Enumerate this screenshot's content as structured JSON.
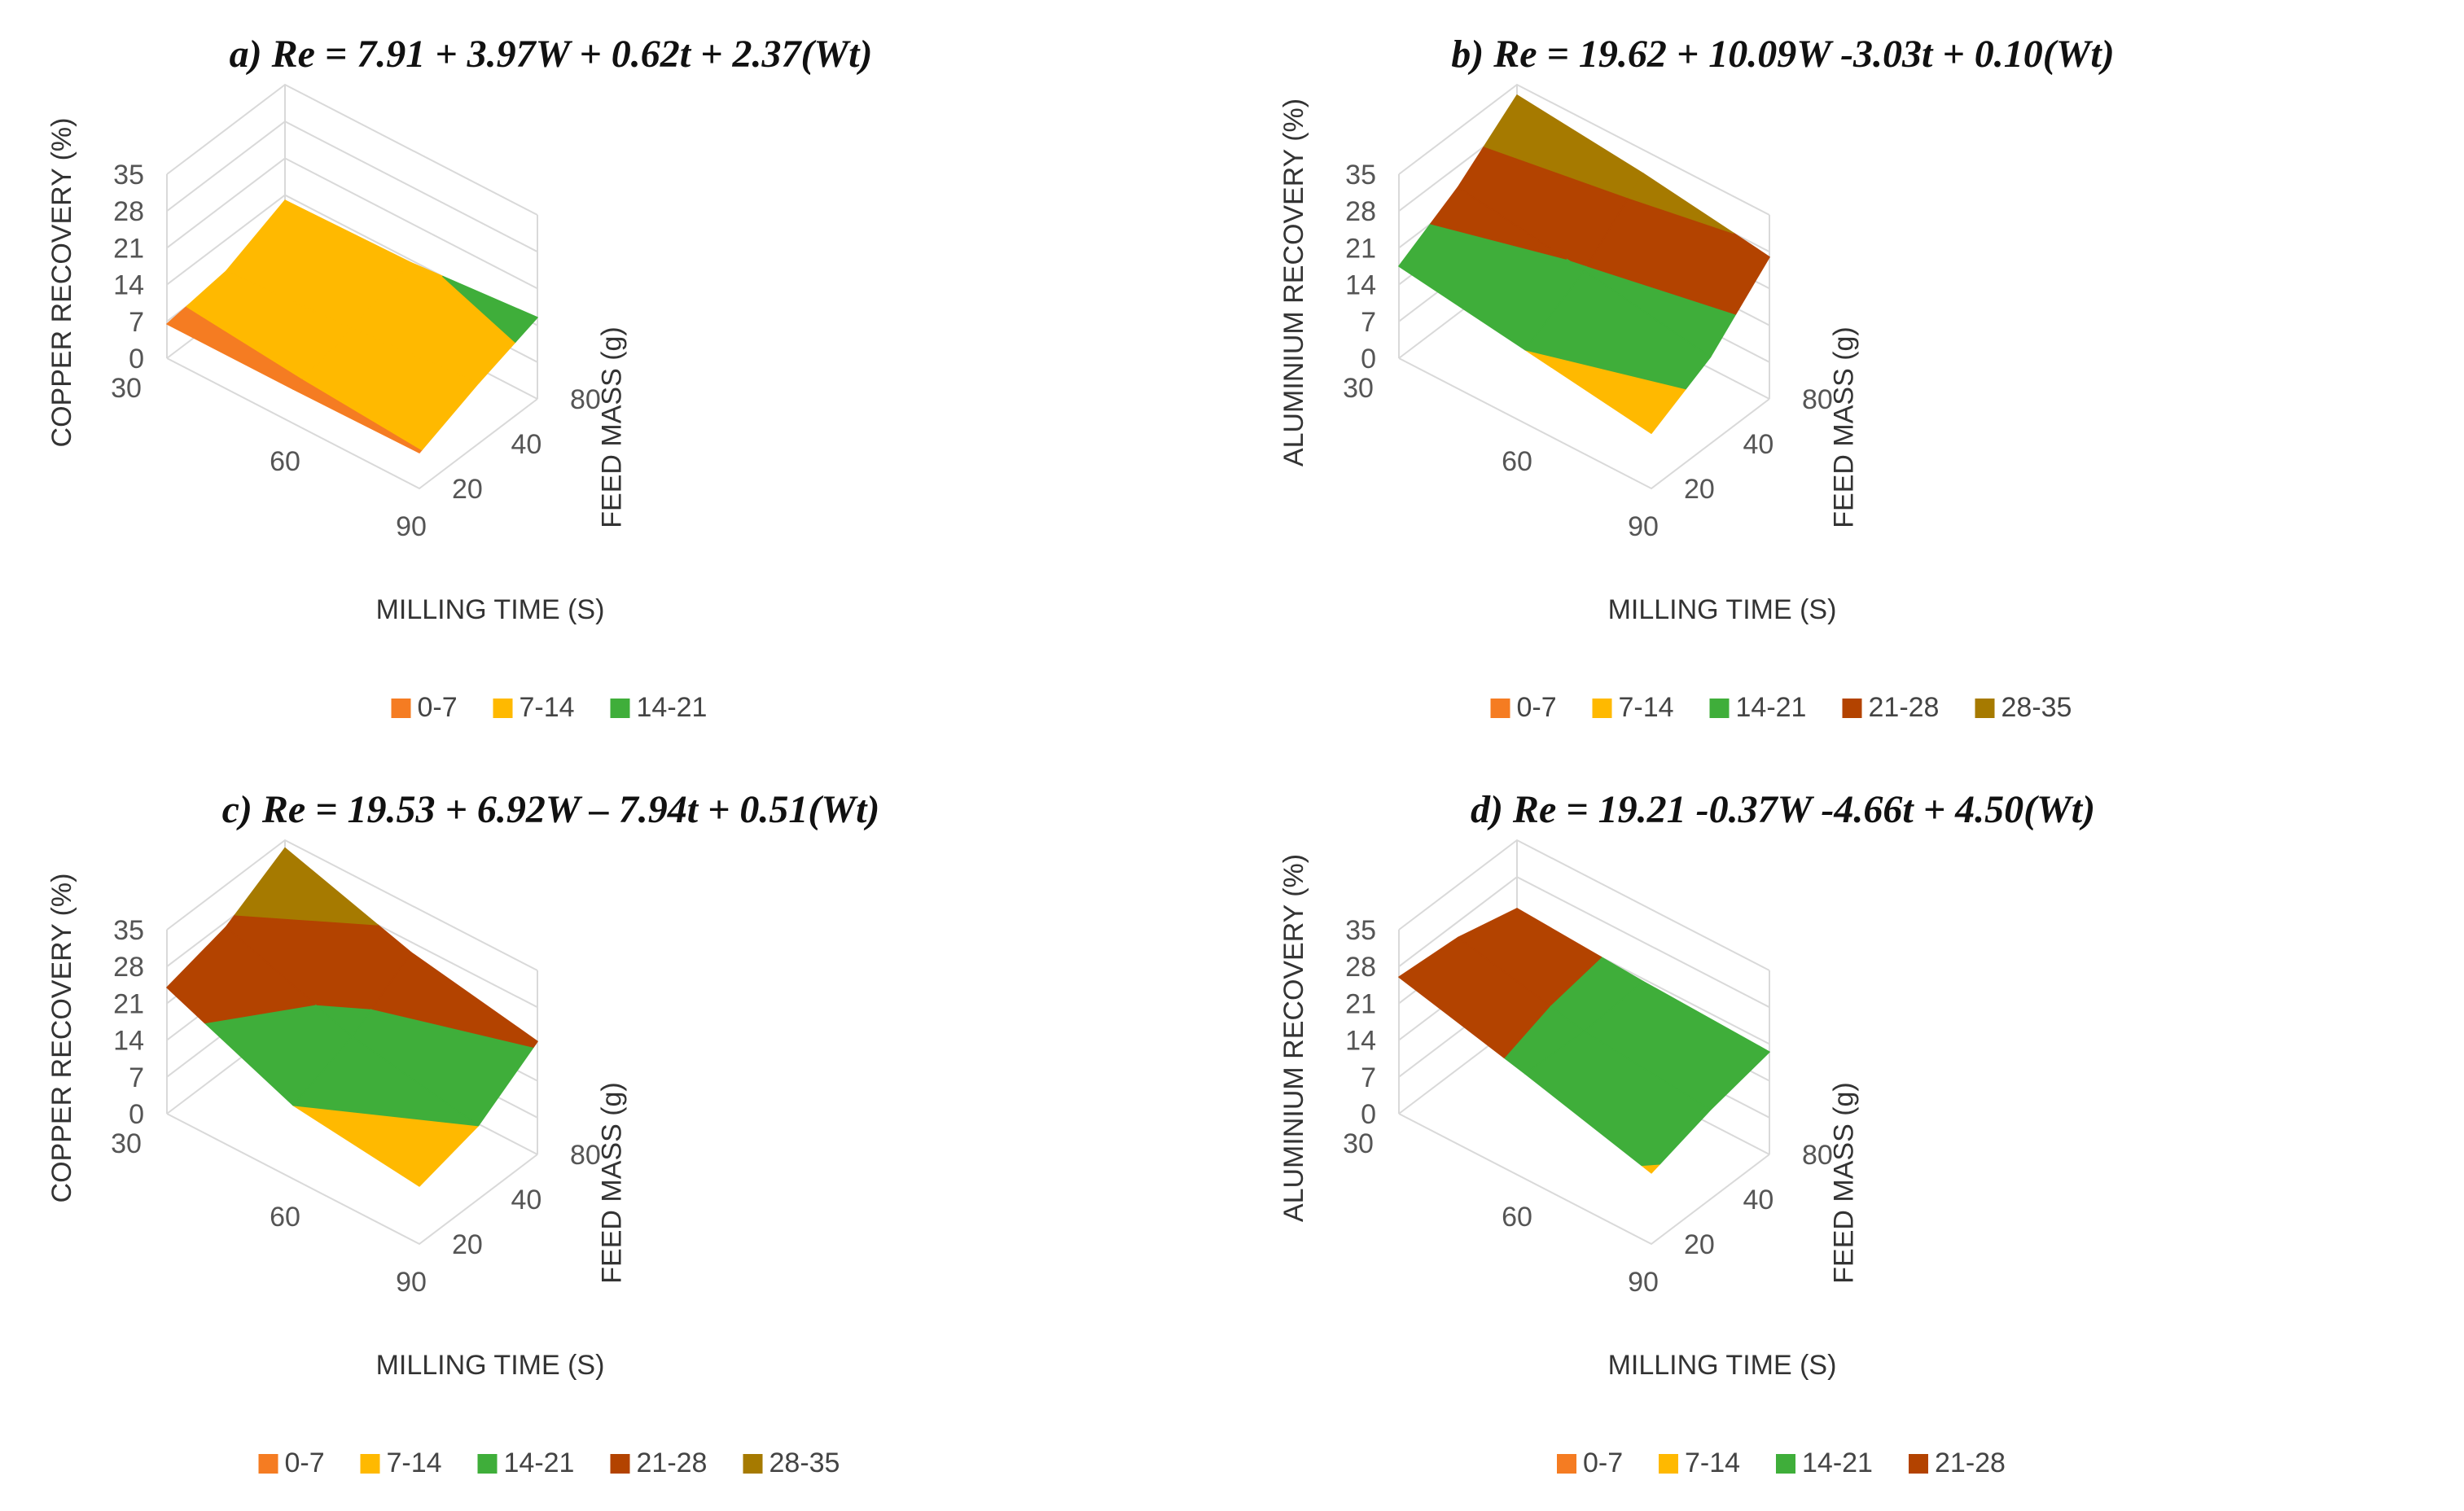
{
  "colors": {
    "0-7": "#F57C22",
    "7-14": "#FFB900",
    "14-21": "#3FAE3A",
    "21-28": "#B34300",
    "28-35": "#A67A00",
    "grid": "#d9d9d9"
  },
  "chart_data": [
    {
      "type": "surface",
      "title": "a) Re = 7.91 + 3.97W + 0.62t + 2.37(Wt)",
      "xlabel": "MILLING TIME (S)",
      "ylabel": "COPPER RECOVERY (%)",
      "zlabel": "FEED MASS (g)",
      "x_ticks": [
        "30",
        "60",
        "90"
      ],
      "z_ticks": [
        "20",
        "40",
        "80"
      ],
      "y_ticks": [
        "0",
        "7",
        "14",
        "21",
        "28",
        "35"
      ],
      "ylim": [
        0,
        35
      ],
      "legend": [
        "0-7",
        "7-14",
        "14-21"
      ],
      "legend_position": "bottom",
      "grid": true,
      "rows": [
        "20",
        "40",
        "80"
      ],
      "cols": [
        "30",
        "60",
        "90"
      ],
      "values": [
        [
          6.5,
          6.5,
          6.8
        ],
        [
          8.0,
          9.5,
          11.5
        ],
        [
          13.0,
          13.5,
          15.5
        ]
      ]
    },
    {
      "type": "surface",
      "title": "b) Re = 19.62 + 10.09W -3.03t + 0.10(Wt)",
      "xlabel": "MILLING TIME (S)",
      "ylabel": "ALUMINIUM RECOVERY (%)",
      "zlabel": "FEED MASS (g)",
      "x_ticks": [
        "30",
        "60",
        "90"
      ],
      "z_ticks": [
        "20",
        "40",
        "80"
      ],
      "y_ticks": [
        "0",
        "7",
        "14",
        "21",
        "28",
        "35"
      ],
      "ylim": [
        0,
        35
      ],
      "legend": [
        "0-7",
        "7-14",
        "14-21",
        "21-28",
        "28-35"
      ],
      "legend_position": "bottom",
      "grid": true,
      "rows": [
        "20",
        "40",
        "80"
      ],
      "cols": [
        "30",
        "60",
        "90"
      ],
      "values": [
        [
          17.5,
          14.0,
          10.5
        ],
        [
          24.0,
          20.5,
          16.5
        ],
        [
          33.0,
          30.5,
          27.0
        ]
      ]
    },
    {
      "type": "surface",
      "title": "c) Re = 19.53 + 6.92W – 7.94t + 0.51(Wt)",
      "xlabel": "MILLING TIME (S)",
      "ylabel": "COPPER RECOVERY (%)",
      "zlabel": "FEED MASS (g)",
      "x_ticks": [
        "30",
        "60",
        "90"
      ],
      "z_ticks": [
        "20",
        "40",
        "80"
      ],
      "y_ticks": [
        "0",
        "7",
        "14",
        "21",
        "28",
        "35"
      ],
      "ylim": [
        0,
        35
      ],
      "legend": [
        "0-7",
        "7-14",
        "14-21",
        "21-28",
        "28-35"
      ],
      "legend_position": "bottom",
      "grid": true,
      "rows": [
        "20",
        "40",
        "80"
      ],
      "cols": [
        "30",
        "60",
        "90"
      ],
      "values": [
        [
          24.0,
          14.0,
          11.0
        ],
        [
          27.0,
          18.5,
          14.0
        ],
        [
          33.5,
          26.0,
          21.5
        ]
      ]
    },
    {
      "type": "surface",
      "title": "d) Re = 19.21 -0.37W -4.66t + 4.50(Wt)",
      "xlabel": "MILLING TIME (S)",
      "ylabel": "ALUMINIUM RECOVERY (%)",
      "zlabel": "FEED MASS (g)",
      "x_ticks": [
        "30",
        "60",
        "90"
      ],
      "z_ticks": [
        "20",
        "40",
        "80"
      ],
      "y_ticks": [
        "0",
        "7",
        "14",
        "21",
        "28",
        "35"
      ],
      "ylim": [
        0,
        35
      ],
      "legend": [
        "0-7",
        "7-14",
        "14-21",
        "21-28"
      ],
      "legend_position": "bottom",
      "grid": true,
      "rows": [
        "20",
        "40",
        "80"
      ],
      "cols": [
        "30",
        "60",
        "90"
      ],
      "values": [
        [
          26.0,
          20.0,
          13.5
        ],
        [
          25.0,
          19.5,
          17.0
        ],
        [
          22.0,
          20.5,
          19.5
        ]
      ]
    }
  ]
}
